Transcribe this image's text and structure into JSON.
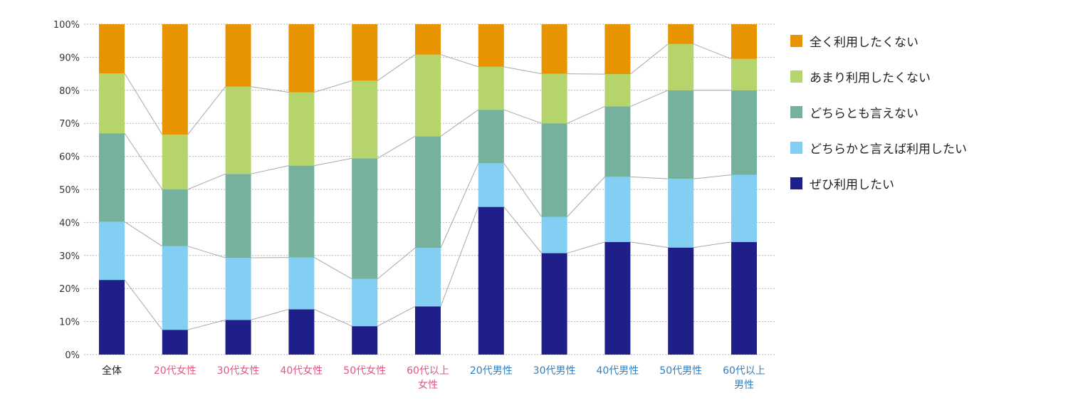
{
  "chart_data": {
    "type": "bar",
    "stacked": true,
    "connector_lines": true,
    "title": "",
    "xlabel": "",
    "ylabel": "",
    "ylim": [
      0,
      100
    ],
    "y_ticks": [
      0,
      10,
      20,
      30,
      40,
      50,
      60,
      70,
      80,
      90,
      100
    ],
    "y_tick_labels": [
      "0%",
      "10%",
      "20%",
      "30%",
      "40%",
      "50%",
      "60%",
      "70%",
      "80%",
      "90%",
      "100%"
    ],
    "grid": true,
    "legend_position": "right",
    "categories": [
      {
        "label": "全体",
        "color": "#222222"
      },
      {
        "label": "20代女性",
        "color": "#e2577e"
      },
      {
        "label": "30代女性",
        "color": "#e2577e"
      },
      {
        "label": "40代女性",
        "color": "#e2577e"
      },
      {
        "label": "50代女性",
        "color": "#e2577e"
      },
      {
        "label": "60代以上\n女性",
        "color": "#e2577e"
      },
      {
        "label": "20代男性",
        "color": "#2f7fc1"
      },
      {
        "label": "30代男性",
        "color": "#2f7fc1"
      },
      {
        "label": "40代男性",
        "color": "#2f7fc1"
      },
      {
        "label": "50代男性",
        "color": "#2f7fc1"
      },
      {
        "label": "60代以上\n男性",
        "color": "#2f7fc1"
      }
    ],
    "series": [
      {
        "name": "ぜひ利用したい",
        "color": "#1f1f8a",
        "values": [
          22.6,
          7.5,
          10.5,
          13.7,
          8.6,
          14.6,
          44.7,
          30.7,
          34.1,
          32.4,
          34.1
        ]
      },
      {
        "name": "どちらかと言えば利用したい",
        "color": "#82cff3",
        "values": [
          17.6,
          25.3,
          18.8,
          15.7,
          14.3,
          17.7,
          13.2,
          11.0,
          19.7,
          20.8,
          20.3
        ]
      },
      {
        "name": "どちらとも言えない",
        "color": "#76b19e",
        "values": [
          26.8,
          17.2,
          25.4,
          27.8,
          36.5,
          33.8,
          16.2,
          28.3,
          21.3,
          26.8,
          25.6
        ]
      },
      {
        "name": "あまり利用したくない",
        "color": "#b5d56c",
        "values": [
          18.1,
          16.6,
          26.4,
          22.2,
          23.5,
          24.7,
          13.0,
          15.0,
          9.8,
          14.0,
          9.5
        ]
      },
      {
        "name": "全く利用したくない",
        "color": "#e89400",
        "values": [
          14.9,
          33.4,
          18.9,
          20.6,
          17.1,
          9.2,
          12.9,
          15.0,
          15.1,
          6.0,
          10.5
        ]
      }
    ]
  }
}
